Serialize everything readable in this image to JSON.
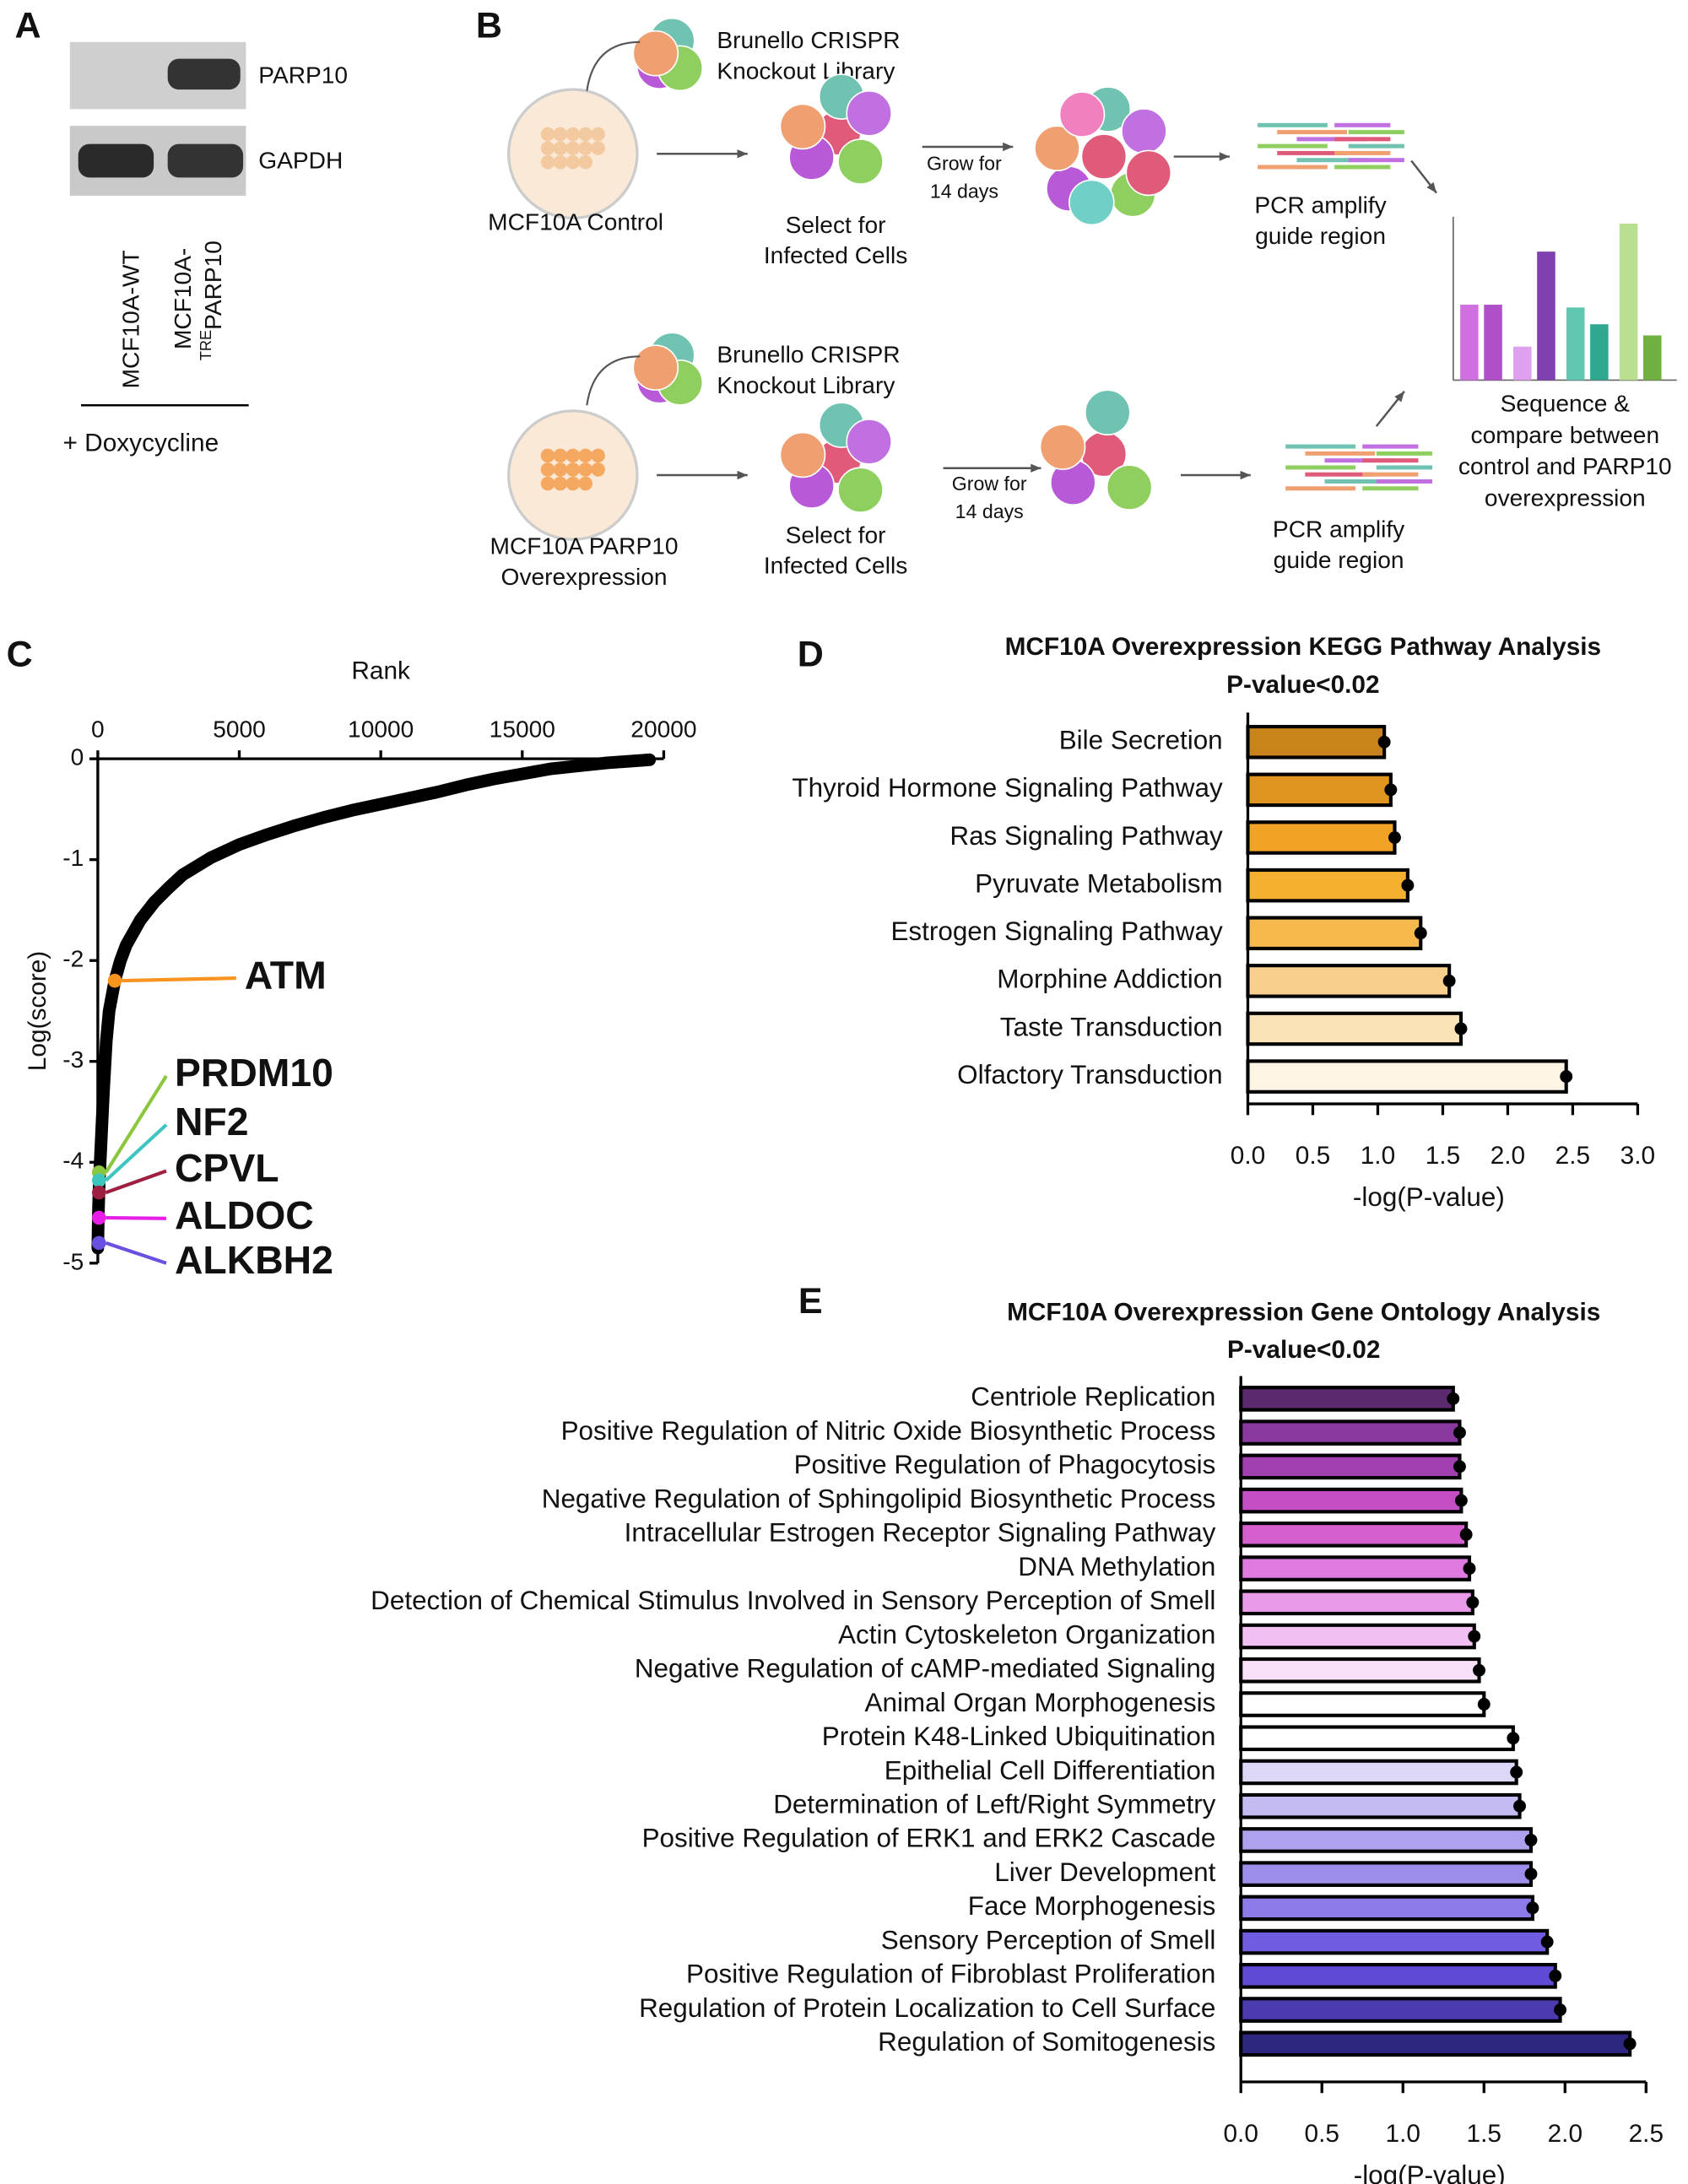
{
  "panel_letters": [
    "A",
    "B",
    "C",
    "D",
    "E"
  ],
  "blot": {
    "bands": [
      "PARP10",
      "GAPDH"
    ],
    "lanes": [
      {
        "text": "MCF10A-WT"
      },
      {
        "text": "MCF10A-",
        "sup": "TRE",
        "rest": "PARP10"
      }
    ],
    "treatment": "+ Doxycycline"
  },
  "workflow": {
    "library": [
      "Brunello CRISPR",
      "Knockout Library"
    ],
    "control": "MCF10A Control",
    "overexpression": [
      "MCF10A PARP10",
      "Overexpression"
    ],
    "select": [
      "Select for",
      "Infected Cells"
    ],
    "grow": [
      "Grow for",
      "14 days"
    ],
    "pcr": [
      "PCR amplify",
      "guide region"
    ],
    "sequence": [
      "Sequence &",
      "compare between",
      "control and PARP10",
      "overexpression"
    ]
  },
  "chart_data": [
    {
      "type": "line",
      "xlabel": "Rank",
      "ylabel": "Log(score)",
      "x": [
        0,
        20,
        50,
        100,
        200,
        300,
        400,
        600,
        800,
        1000,
        1500,
        2000,
        2500,
        3000,
        4000,
        5000,
        6000,
        7000,
        8000,
        9000,
        10000,
        11000,
        12000,
        13000,
        14000,
        15000,
        16000,
        17000,
        18000,
        19000,
        19500
      ],
      "series": [
        {
          "color": "#000000",
          "values": [
            -4.85,
            -4.5,
            -4.2,
            -3.9,
            -3.3,
            -2.8,
            -2.5,
            -2.2,
            -2.0,
            -1.85,
            -1.6,
            -1.42,
            -1.28,
            -1.15,
            -0.98,
            -0.85,
            -0.75,
            -0.66,
            -0.58,
            -0.51,
            -0.45,
            -0.39,
            -0.33,
            -0.26,
            -0.2,
            -0.15,
            -0.1,
            -0.07,
            -0.04,
            -0.02,
            -0.01
          ]
        }
      ],
      "highlights": [
        {
          "label": "ATM",
          "color": "#f7931e",
          "x": 600,
          "y": -2.2
        },
        {
          "label": "PRDM10",
          "color": "#8cc63f",
          "x": 40,
          "y": -4.1
        },
        {
          "label": "NF2",
          "color": "#3fc5c0",
          "x": 40,
          "y": -4.18
        },
        {
          "label": "CPVL",
          "color": "#9e1f3f",
          "x": 40,
          "y": -4.3
        },
        {
          "label": "ALDOC",
          "color": "#e61ee6",
          "x": 40,
          "y": -4.55
        },
        {
          "label": "ALKBH2",
          "color": "#6a4fe0",
          "x": 40,
          "y": -4.8
        }
      ],
      "xlim": [
        0,
        20000
      ],
      "xticks": [
        0,
        5000,
        10000,
        15000,
        20000
      ],
      "ylim": [
        -5,
        0
      ],
      "yticks": [
        0,
        -1,
        -2,
        -3,
        -4,
        -5
      ]
    },
    {
      "type": "hbar",
      "title": "MCF10A Overexpression KEGG Pathway Analysis",
      "subtitle": "P-value<0.02",
      "xlabel": "-log(P-value)",
      "categories": [
        "Bile Secretion",
        "Thyroid Hormone Signaling Pathway",
        "Ras Signaling Pathway",
        "Pyruvate Metabolism",
        "Estrogen Signaling Pathway",
        "Morphine Addiction",
        "Taste Transduction",
        "Olfactory Transduction"
      ],
      "values": [
        1.05,
        1.1,
        1.13,
        1.23,
        1.33,
        1.55,
        1.64,
        2.45
      ],
      "colors": [
        "#c8841a",
        "#e0961e",
        "#f0a325",
        "#f5b030",
        "#f7b84e",
        "#f9cf8e",
        "#fbe3b8",
        "#fdf5e3"
      ],
      "xlim": [
        0,
        3
      ],
      "xticks": [
        {
          "value": 0,
          "label": "0.0"
        },
        0.5,
        {
          "value": 1,
          "label": "1.0"
        },
        1.5,
        {
          "value": 2,
          "label": "2.0"
        },
        2.5,
        {
          "value": 3,
          "label": "3.0"
        }
      ]
    },
    {
      "type": "hbar",
      "title": "MCF10A Overexpression Gene Ontology Analysis",
      "subtitle": "P-value<0.02",
      "xlabel": "-log(P-value)",
      "categories": [
        "Centriole Replication",
        "Positive Regulation of Nitric Oxide Biosynthetic Process",
        "Positive Regulation of Phagocytosis",
        "Negative Regulation of Sphingolipid Biosynthetic Process",
        "Intracellular Estrogen Receptor Signaling Pathway",
        "DNA Methylation",
        "Detection of Chemical Stimulus Involved in Sensory Perception of Smell",
        "Actin Cytoskeleton Organization",
        "Negative Regulation of cAMP-mediated Signaling",
        "Animal Organ Morphogenesis",
        "Protein K48-Linked Ubiquitination",
        "Epithelial Cell Differentiation",
        "Determination of Left/Right Symmetry",
        "Positive Regulation of ERK1 and ERK2 Cascade",
        "Liver Development",
        "Face Morphogenesis",
        "Sensory Perception of Smell",
        "Positive Regulation of Fibroblast Proliferation",
        "Regulation of Protein Localization to Cell Surface",
        "Regulation of Somitogenesis"
      ],
      "values": [
        1.31,
        1.35,
        1.35,
        1.36,
        1.39,
        1.41,
        1.43,
        1.44,
        1.47,
        1.5,
        1.68,
        1.7,
        1.72,
        1.79,
        1.79,
        1.8,
        1.89,
        1.94,
        1.97,
        2.4
      ],
      "colors": [
        "#5b2a6e",
        "#8a3a9e",
        "#a23fb0",
        "#c44fc4",
        "#d65fd0",
        "#e07ae0",
        "#e99ae9",
        "#f2bff2",
        "#f9e0f9",
        "#ffffff",
        "#ffffff",
        "#dcd6f7",
        "#c4bbf2",
        "#aea2ee",
        "#9d8eec",
        "#8c7ae9",
        "#6f5ce0",
        "#5f4ad6",
        "#4a3bb0",
        "#2e2780"
      ],
      "xlim": [
        0,
        2.5
      ],
      "xticks": [
        {
          "value": 0,
          "label": "0.0"
        },
        0.5,
        {
          "value": 1,
          "label": "1.0"
        },
        1.5,
        {
          "value": 2,
          "label": "2.0"
        },
        2.5
      ]
    }
  ]
}
